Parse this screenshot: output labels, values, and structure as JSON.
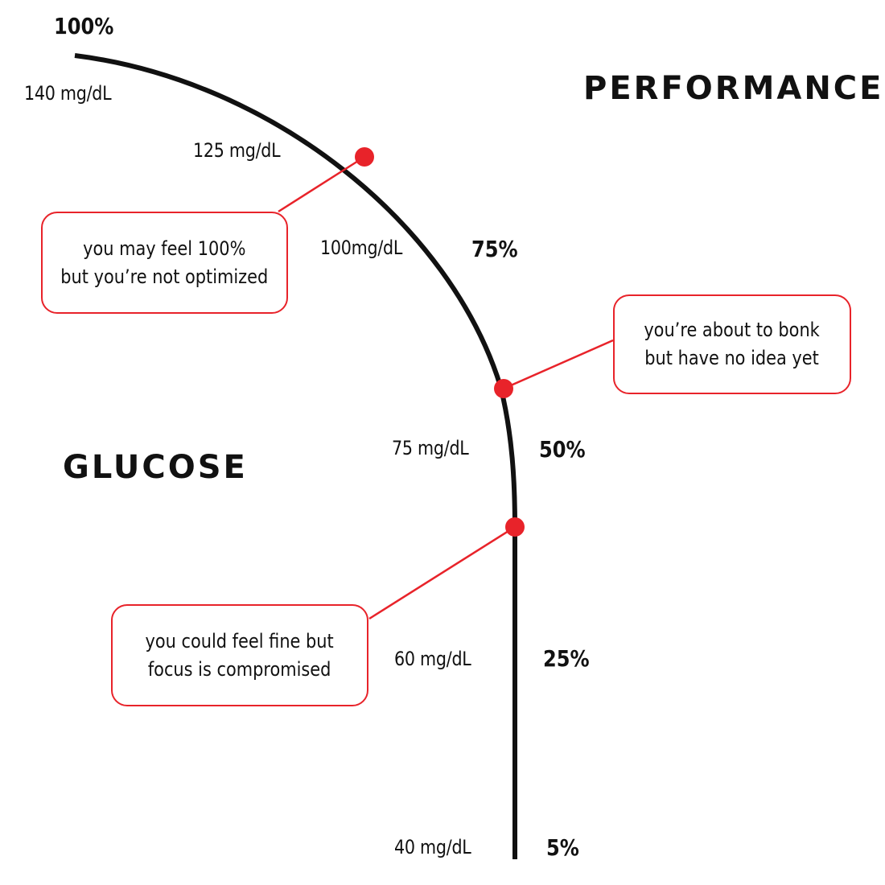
{
  "headings": {
    "performance": "PERFORMANCE",
    "glucose": "GLUCOSE"
  },
  "performance_levels": [
    "100%",
    "75%",
    "50%",
    "25%",
    "5%"
  ],
  "glucose_levels": [
    "140 mg/dL",
    "125 mg/dL",
    "100mg/dL",
    "75 mg/dL",
    "60 mg/dL",
    "40 mg/dL"
  ],
  "callouts": [
    {
      "text": "you may feel 100%\nbut you’re not optimized"
    },
    {
      "text": "you’re about to bonk\nbut have no idea yet"
    },
    {
      "text": "you could feel fine but\nfocus is compromised"
    }
  ],
  "colors": {
    "curve": "#111111",
    "marker": "#e8232a",
    "callout_border": "#e8232a",
    "text": "#111111"
  }
}
